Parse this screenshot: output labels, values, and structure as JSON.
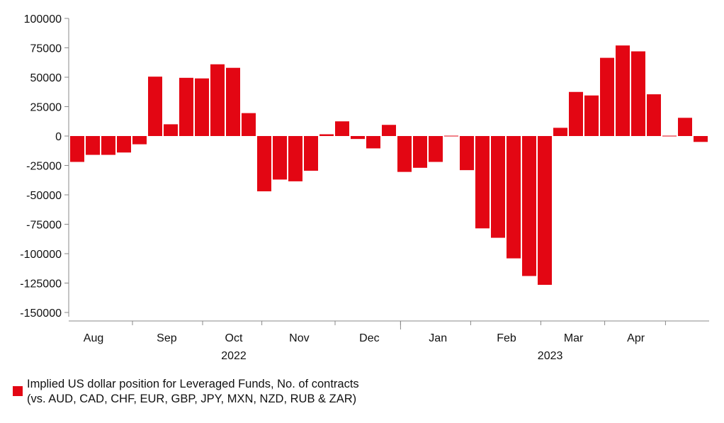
{
  "chart_data": {
    "type": "bar",
    "bar_color": "#e30613",
    "ylim": [
      -150000,
      100000
    ],
    "yticks": [
      100000,
      75000,
      50000,
      25000,
      0,
      -25000,
      -50000,
      -75000,
      -100000,
      -125000,
      -150000
    ],
    "ytick_labels": [
      "100000",
      "75000",
      "50000",
      "25000",
      "0",
      "-25000",
      "-50000",
      "-75000",
      "-100000",
      "-125000",
      "-150000"
    ],
    "values": [
      -22000,
      -16000,
      -16000,
      -14000,
      -7000,
      50500,
      10000,
      49500,
      49000,
      61000,
      58000,
      19500,
      -47000,
      -37000,
      -38500,
      -29500,
      1500,
      12500,
      -2500,
      -10500,
      9500,
      -30500,
      -27000,
      -22000,
      -500,
      -29000,
      -78500,
      -86500,
      -104000,
      -119000,
      -126500,
      7000,
      37500,
      34500,
      66500,
      77000,
      72000,
      35500,
      -500,
      15500,
      -5000
    ],
    "month_labels": [
      "Aug",
      "Sep",
      "Oct",
      "Nov",
      "Dec",
      "Jan",
      "Feb",
      "Mar",
      "Apr"
    ],
    "year_labels": [
      "2022",
      "2023"
    ],
    "grid": false,
    "legend": {
      "position": "bottom-left",
      "line1": "Implied US dollar position for Leveraged Funds, No. of contracts",
      "line2": "(vs. AUD, CAD, CHF, EUR, GBP, JPY, MXN, NZD, RUB & ZAR)"
    }
  }
}
